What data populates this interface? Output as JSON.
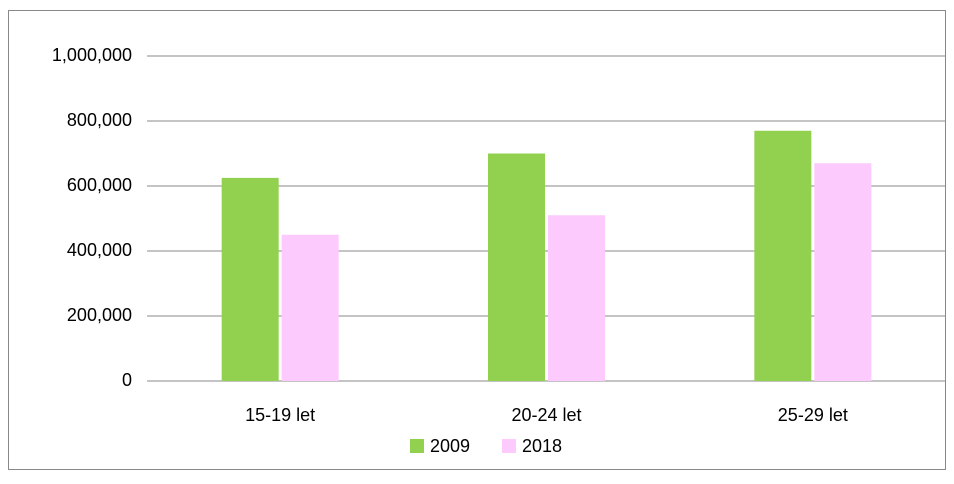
{
  "chart_data": {
    "type": "bar",
    "categories": [
      "15-19 let",
      "20-24 let",
      "25-29 let"
    ],
    "series": [
      {
        "name": "2009",
        "color": "#92d050",
        "values": [
          625000,
          700000,
          770000
        ]
      },
      {
        "name": "2018",
        "color": "#fccafc",
        "values": [
          450000,
          510000,
          670000
        ]
      }
    ],
    "ylim": [
      0,
      1000000
    ],
    "yticks": [
      0,
      {
        "value": 200000,
        "label": "200,000"
      },
      {
        "value": 400000,
        "label": "400,000"
      },
      {
        "value": 600000,
        "label": "600,000"
      },
      {
        "value": 800000,
        "label": "800,000"
      },
      {
        "value": 1000000,
        "label": "1,000,000"
      }
    ],
    "grid": true,
    "legend": "bottom"
  }
}
